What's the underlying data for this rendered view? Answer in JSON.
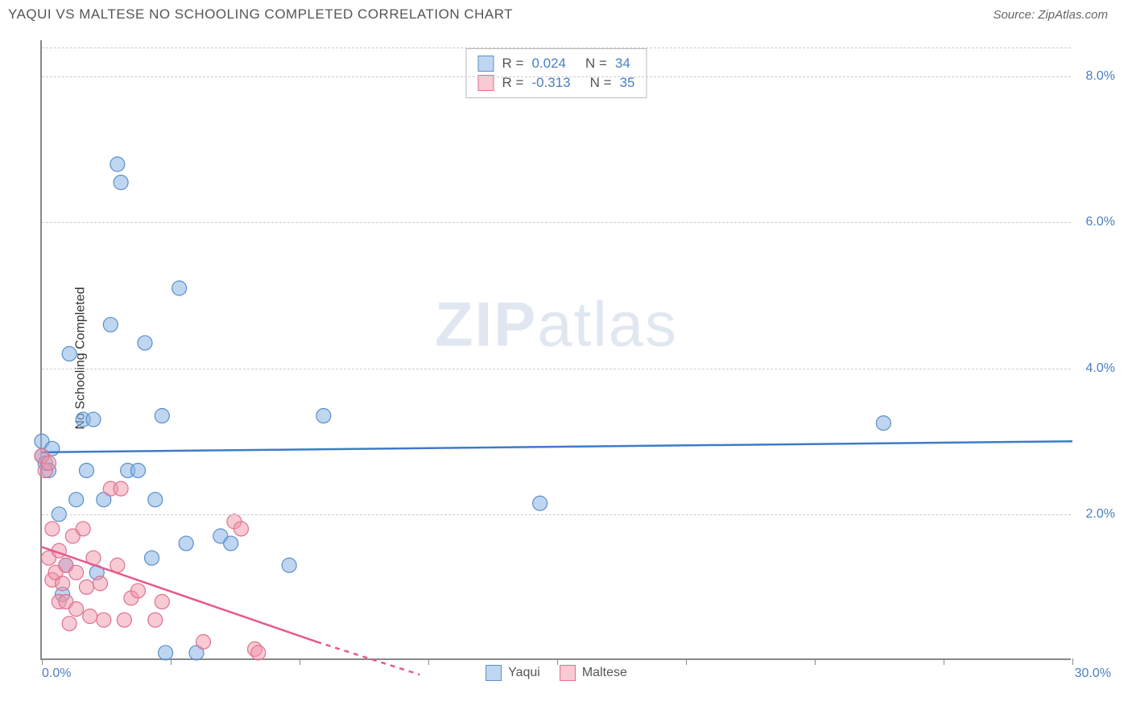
{
  "header": {
    "title": "YAQUI VS MALTESE NO SCHOOLING COMPLETED CORRELATION CHART",
    "source": "Source: ZipAtlas.com"
  },
  "chart": {
    "type": "scatter",
    "ylabel": "No Schooling Completed",
    "xlim": [
      0,
      30
    ],
    "ylim": [
      0,
      8.5
    ],
    "xtick_positions": [
      0,
      3.75,
      7.5,
      11.25,
      15,
      18.75,
      22.5,
      26.25,
      30
    ],
    "ytick_positions": [
      2,
      4,
      6,
      8
    ],
    "ytick_labels": [
      "2.0%",
      "4.0%",
      "6.0%",
      "8.0%"
    ],
    "xaxis_start_label": "0.0%",
    "xaxis_end_label": "30.0%",
    "background_color": "#ffffff",
    "grid_color": "#cccccc",
    "axis_color": "#888888",
    "watermark": {
      "bold": "ZIP",
      "rest": "atlas"
    },
    "series": [
      {
        "name": "Yaqui",
        "marker_fill": "rgba(138,180,230,0.55)",
        "marker_stroke": "#5a8fc8",
        "line_color": "#3d7cc9",
        "line_width": 2.5,
        "marker_radius": 9,
        "R": "0.024",
        "N": "34",
        "regression": {
          "x0": 0,
          "y0": 2.85,
          "x1": 30,
          "y1": 3.0
        },
        "points": [
          [
            0.0,
            2.8
          ],
          [
            0.0,
            3.0
          ],
          [
            0.1,
            2.7
          ],
          [
            0.2,
            2.6
          ],
          [
            0.3,
            2.9
          ],
          [
            0.5,
            2.0
          ],
          [
            0.6,
            0.9
          ],
          [
            0.7,
            1.3
          ],
          [
            0.8,
            4.2
          ],
          [
            1.0,
            2.2
          ],
          [
            1.2,
            3.3
          ],
          [
            1.3,
            2.6
          ],
          [
            1.5,
            3.3
          ],
          [
            1.6,
            1.2
          ],
          [
            1.8,
            2.2
          ],
          [
            2.0,
            4.6
          ],
          [
            2.2,
            6.8
          ],
          [
            2.3,
            6.55
          ],
          [
            2.5,
            2.6
          ],
          [
            2.8,
            2.6
          ],
          [
            3.0,
            4.35
          ],
          [
            3.2,
            1.4
          ],
          [
            3.3,
            2.2
          ],
          [
            3.5,
            3.35
          ],
          [
            3.6,
            0.1
          ],
          [
            4.0,
            5.1
          ],
          [
            4.2,
            1.6
          ],
          [
            5.2,
            1.7
          ],
          [
            5.5,
            1.6
          ],
          [
            7.2,
            1.3
          ],
          [
            8.2,
            3.35
          ],
          [
            14.5,
            2.15
          ],
          [
            24.5,
            3.25
          ],
          [
            4.5,
            0.1
          ]
        ]
      },
      {
        "name": "Maltese",
        "marker_fill": "rgba(240,150,170,0.5)",
        "marker_stroke": "#e07090",
        "line_color": "#e85a8a",
        "line_width": 2.5,
        "marker_radius": 9,
        "R": "-0.313",
        "N": "35",
        "regression_solid": {
          "x0": 0,
          "y0": 1.55,
          "x1": 8,
          "y1": 0.25
        },
        "regression_dash": {
          "x0": 8,
          "y0": 0.25,
          "x1": 11,
          "y1": -0.2
        },
        "points": [
          [
            0.0,
            2.8
          ],
          [
            0.1,
            2.6
          ],
          [
            0.2,
            1.4
          ],
          [
            0.2,
            2.7
          ],
          [
            0.3,
            1.8
          ],
          [
            0.3,
            1.1
          ],
          [
            0.4,
            1.2
          ],
          [
            0.5,
            0.8
          ],
          [
            0.5,
            1.5
          ],
          [
            0.6,
            1.05
          ],
          [
            0.7,
            0.8
          ],
          [
            0.7,
            1.3
          ],
          [
            0.8,
            0.5
          ],
          [
            0.9,
            1.7
          ],
          [
            1.0,
            1.2
          ],
          [
            1.0,
            0.7
          ],
          [
            1.2,
            1.8
          ],
          [
            1.3,
            1.0
          ],
          [
            1.4,
            0.6
          ],
          [
            1.5,
            1.4
          ],
          [
            1.7,
            1.05
          ],
          [
            1.8,
            0.55
          ],
          [
            2.0,
            2.35
          ],
          [
            2.2,
            1.3
          ],
          [
            2.3,
            2.35
          ],
          [
            2.4,
            0.55
          ],
          [
            2.6,
            0.85
          ],
          [
            2.8,
            0.95
          ],
          [
            3.3,
            0.55
          ],
          [
            3.5,
            0.8
          ],
          [
            4.7,
            0.25
          ],
          [
            5.6,
            1.9
          ],
          [
            5.8,
            1.8
          ],
          [
            6.2,
            0.15
          ],
          [
            6.3,
            0.1
          ]
        ]
      }
    ],
    "legend_bottom": [
      "Yaqui",
      "Maltese"
    ]
  }
}
